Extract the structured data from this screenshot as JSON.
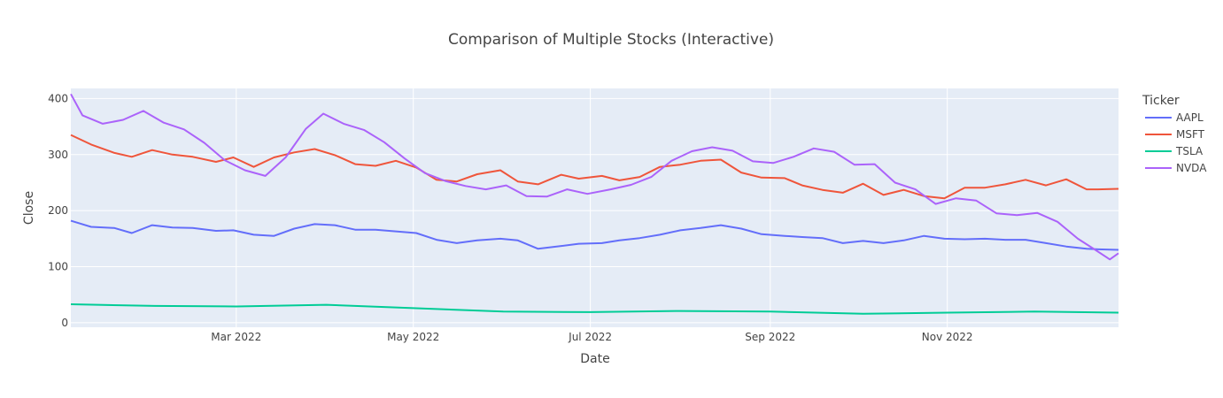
{
  "chart_data": {
    "type": "line",
    "title": "Comparison of Multiple Stocks (Interactive)",
    "xlabel": "Date",
    "ylabel": "Close",
    "xlim": [
      "2022-01-03",
      "2022-12-30"
    ],
    "ylim": [
      -8,
      418
    ],
    "x_ticks": [
      {
        "date": "2022-03-01",
        "label": "Mar 2022"
      },
      {
        "date": "2022-05-01",
        "label": "May 2022"
      },
      {
        "date": "2022-07-01",
        "label": "Jul 2022"
      },
      {
        "date": "2022-09-01",
        "label": "Sep 2022"
      },
      {
        "date": "2022-11-01",
        "label": "Nov 2022"
      }
    ],
    "y_ticks": [
      0,
      100,
      200,
      300,
      400
    ],
    "grid": true,
    "legend": {
      "title": "Ticker",
      "position": "right"
    },
    "series": [
      {
        "name": "AAPL",
        "color": "#636efa",
        "points": [
          [
            "2022-01-03",
            182
          ],
          [
            "2022-01-10",
            171
          ],
          [
            "2022-01-18",
            169
          ],
          [
            "2022-01-24",
            160
          ],
          [
            "2022-01-31",
            174
          ],
          [
            "2022-02-07",
            170
          ],
          [
            "2022-02-14",
            169
          ],
          [
            "2022-02-22",
            164
          ],
          [
            "2022-02-28",
            165
          ],
          [
            "2022-03-07",
            157
          ],
          [
            "2022-03-14",
            155
          ],
          [
            "2022-03-21",
            168
          ],
          [
            "2022-03-28",
            176
          ],
          [
            "2022-04-04",
            174
          ],
          [
            "2022-04-11",
            166
          ],
          [
            "2022-04-18",
            166
          ],
          [
            "2022-04-25",
            163
          ],
          [
            "2022-05-02",
            160
          ],
          [
            "2022-05-09",
            148
          ],
          [
            "2022-05-16",
            142
          ],
          [
            "2022-05-23",
            147
          ],
          [
            "2022-05-31",
            150
          ],
          [
            "2022-06-06",
            147
          ],
          [
            "2022-06-13",
            132
          ],
          [
            "2022-06-21",
            137
          ],
          [
            "2022-06-27",
            141
          ],
          [
            "2022-07-05",
            142
          ],
          [
            "2022-07-11",
            147
          ],
          [
            "2022-07-18",
            151
          ],
          [
            "2022-07-25",
            157
          ],
          [
            "2022-08-01",
            165
          ],
          [
            "2022-08-08",
            169
          ],
          [
            "2022-08-15",
            174
          ],
          [
            "2022-08-22",
            168
          ],
          [
            "2022-08-29",
            158
          ],
          [
            "2022-09-06",
            155
          ],
          [
            "2022-09-12",
            153
          ],
          [
            "2022-09-19",
            151
          ],
          [
            "2022-09-26",
            142
          ],
          [
            "2022-10-03",
            146
          ],
          [
            "2022-10-10",
            142
          ],
          [
            "2022-10-17",
            147
          ],
          [
            "2022-10-24",
            155
          ],
          [
            "2022-10-31",
            150
          ],
          [
            "2022-11-07",
            149
          ],
          [
            "2022-11-14",
            150
          ],
          [
            "2022-11-21",
            148
          ],
          [
            "2022-11-28",
            148
          ],
          [
            "2022-12-05",
            142
          ],
          [
            "2022-12-12",
            136
          ],
          [
            "2022-12-19",
            132
          ],
          [
            "2022-12-23",
            131
          ],
          [
            "2022-12-30",
            130
          ]
        ]
      },
      {
        "name": "MSFT",
        "color": "#ef553b",
        "points": [
          [
            "2022-01-03",
            335
          ],
          [
            "2022-01-10",
            318
          ],
          [
            "2022-01-18",
            303
          ],
          [
            "2022-01-24",
            296
          ],
          [
            "2022-01-31",
            308
          ],
          [
            "2022-02-07",
            300
          ],
          [
            "2022-02-14",
            296
          ],
          [
            "2022-02-22",
            287
          ],
          [
            "2022-02-28",
            295
          ],
          [
            "2022-03-07",
            278
          ],
          [
            "2022-03-14",
            295
          ],
          [
            "2022-03-21",
            304
          ],
          [
            "2022-03-28",
            310
          ],
          [
            "2022-04-04",
            299
          ],
          [
            "2022-04-11",
            283
          ],
          [
            "2022-04-18",
            280
          ],
          [
            "2022-04-25",
            289
          ],
          [
            "2022-05-02",
            277
          ],
          [
            "2022-05-09",
            255
          ],
          [
            "2022-05-16",
            252
          ],
          [
            "2022-05-23",
            265
          ],
          [
            "2022-05-31",
            272
          ],
          [
            "2022-06-06",
            252
          ],
          [
            "2022-06-13",
            247
          ],
          [
            "2022-06-21",
            264
          ],
          [
            "2022-06-27",
            257
          ],
          [
            "2022-07-05",
            262
          ],
          [
            "2022-07-11",
            254
          ],
          [
            "2022-07-18",
            260
          ],
          [
            "2022-07-25",
            278
          ],
          [
            "2022-08-01",
            282
          ],
          [
            "2022-08-08",
            289
          ],
          [
            "2022-08-15",
            291
          ],
          [
            "2022-08-22",
            268
          ],
          [
            "2022-08-29",
            259
          ],
          [
            "2022-09-06",
            258
          ],
          [
            "2022-09-12",
            245
          ],
          [
            "2022-09-19",
            237
          ],
          [
            "2022-09-26",
            232
          ],
          [
            "2022-10-03",
            248
          ],
          [
            "2022-10-10",
            228
          ],
          [
            "2022-10-17",
            237
          ],
          [
            "2022-10-24",
            226
          ],
          [
            "2022-10-31",
            222
          ],
          [
            "2022-11-07",
            241
          ],
          [
            "2022-11-14",
            241
          ],
          [
            "2022-11-21",
            247
          ],
          [
            "2022-11-28",
            255
          ],
          [
            "2022-12-05",
            245
          ],
          [
            "2022-12-12",
            256
          ],
          [
            "2022-12-19",
            238
          ],
          [
            "2022-12-23",
            238
          ],
          [
            "2022-12-30",
            239
          ]
        ]
      },
      {
        "name": "TSLA",
        "color": "#00cc96",
        "points": [
          [
            "2022-01-03",
            33
          ],
          [
            "2022-02-01",
            30
          ],
          [
            "2022-03-01",
            29
          ],
          [
            "2022-04-01",
            32
          ],
          [
            "2022-05-02",
            26
          ],
          [
            "2022-06-01",
            20
          ],
          [
            "2022-07-01",
            19
          ],
          [
            "2022-08-01",
            21
          ],
          [
            "2022-09-01",
            20
          ],
          [
            "2022-10-03",
            16
          ],
          [
            "2022-11-01",
            18
          ],
          [
            "2022-12-01",
            20
          ],
          [
            "2022-12-30",
            18
          ]
        ]
      },
      {
        "name": "NVDA",
        "color": "#ab63fa",
        "points": [
          [
            "2022-01-03",
            408
          ],
          [
            "2022-01-07",
            370
          ],
          [
            "2022-01-14",
            355
          ],
          [
            "2022-01-21",
            362
          ],
          [
            "2022-01-28",
            378
          ],
          [
            "2022-02-04",
            357
          ],
          [
            "2022-02-11",
            345
          ],
          [
            "2022-02-18",
            321
          ],
          [
            "2022-02-25",
            290
          ],
          [
            "2022-03-04",
            272
          ],
          [
            "2022-03-11",
            262
          ],
          [
            "2022-03-18",
            295
          ],
          [
            "2022-03-25",
            346
          ],
          [
            "2022-03-31",
            373
          ],
          [
            "2022-04-07",
            355
          ],
          [
            "2022-04-14",
            344
          ],
          [
            "2022-04-21",
            322
          ],
          [
            "2022-04-28",
            293
          ],
          [
            "2022-05-05",
            267
          ],
          [
            "2022-05-12",
            253
          ],
          [
            "2022-05-19",
            244
          ],
          [
            "2022-05-26",
            238
          ],
          [
            "2022-06-02",
            245
          ],
          [
            "2022-06-09",
            226
          ],
          [
            "2022-06-16",
            225
          ],
          [
            "2022-06-23",
            238
          ],
          [
            "2022-06-30",
            230
          ],
          [
            "2022-07-08",
            238
          ],
          [
            "2022-07-15",
            246
          ],
          [
            "2022-07-22",
            260
          ],
          [
            "2022-07-29",
            289
          ],
          [
            "2022-08-05",
            306
          ],
          [
            "2022-08-12",
            313
          ],
          [
            "2022-08-19",
            307
          ],
          [
            "2022-08-26",
            288
          ],
          [
            "2022-09-02",
            285
          ],
          [
            "2022-09-09",
            296
          ],
          [
            "2022-09-16",
            311
          ],
          [
            "2022-09-23",
            305
          ],
          [
            "2022-09-30",
            282
          ],
          [
            "2022-10-07",
            283
          ],
          [
            "2022-10-14",
            250
          ],
          [
            "2022-10-21",
            238
          ],
          [
            "2022-10-28",
            212
          ],
          [
            "2022-11-04",
            222
          ],
          [
            "2022-11-11",
            218
          ],
          [
            "2022-11-18",
            195
          ],
          [
            "2022-11-25",
            192
          ],
          [
            "2022-12-02",
            196
          ],
          [
            "2022-12-09",
            180
          ],
          [
            "2022-12-16",
            150
          ],
          [
            "2022-12-22",
            130
          ],
          [
            "2022-12-27",
            113
          ],
          [
            "2022-12-30",
            124
          ]
        ]
      }
    ]
  }
}
